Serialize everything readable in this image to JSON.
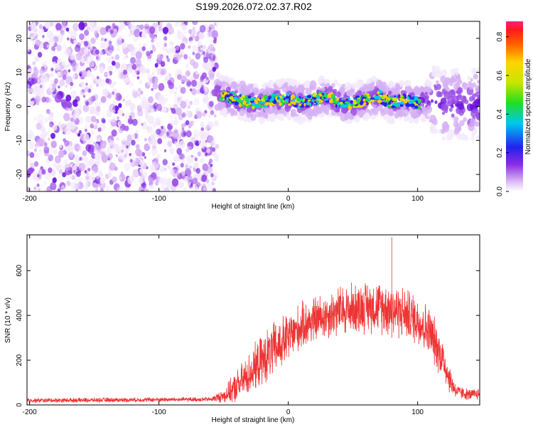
{
  "figure": {
    "title": "S199.2026.072.02.37.R02"
  },
  "chart_data": [
    {
      "type": "heatmap",
      "name": "spectrogram",
      "xlabel": "Height of straight line (km)",
      "ylabel": "Frequency (Hz)",
      "xlim": [
        -202,
        148
      ],
      "ylim": [
        -25,
        25
      ],
      "xticks": [
        -200,
        -100,
        0,
        100
      ],
      "yticks": [
        -20,
        -10,
        0,
        10,
        20
      ],
      "colorbar": {
        "label": "Normalized spectral amplitude",
        "range": [
          0,
          0.88
        ],
        "ticks": [
          0.0,
          0.2,
          0.4,
          0.6,
          0.8
        ]
      },
      "regions": [
        {
          "desc": "broadband noise",
          "x_range": [
            -202,
            -55
          ],
          "f_range": [
            -25,
            25
          ],
          "amplitude": 0.15
        },
        {
          "desc": "signal band",
          "x_range": [
            -55,
            148
          ],
          "amplitude_peak": 0.85
        },
        {
          "desc": "spread at far end",
          "x_range": [
            110,
            148
          ],
          "f_range": [
            -10,
            10
          ],
          "amplitude": 0.3
        }
      ],
      "centroid_track": {
        "x": [
          -55,
          -40,
          -25,
          -10,
          0,
          10,
          20,
          30,
          40,
          50,
          60,
          70,
          80,
          90,
          100,
          110,
          120,
          130,
          140,
          148
        ],
        "freq": [
          4,
          2,
          1,
          2,
          2,
          1,
          2,
          3,
          1,
          1,
          2,
          3,
          1,
          2,
          1,
          2,
          0,
          1,
          0,
          1
        ]
      }
    },
    {
      "type": "line",
      "name": "snr-trace",
      "xlabel": "Height of straight line (km)",
      "ylabel": "SNR (10 * v/v)",
      "xlim": [
        -202,
        148
      ],
      "ylim": [
        0,
        760
      ],
      "xticks": [
        -200,
        -100,
        0,
        100
      ],
      "yticks": [
        0,
        200,
        400,
        600
      ],
      "color": "#ee3333",
      "envelope": {
        "x": [
          -202,
          -60,
          -50,
          -40,
          -30,
          -20,
          -10,
          0,
          10,
          20,
          30,
          40,
          50,
          60,
          70,
          80,
          90,
          100,
          110,
          120,
          125,
          130,
          140,
          148
        ],
        "mean": [
          20,
          25,
          40,
          80,
          140,
          200,
          250,
          300,
          350,
          380,
          400,
          420,
          430,
          440,
          440,
          430,
          410,
          380,
          320,
          200,
          110,
          60,
          45,
          50
        ],
        "spread": [
          10,
          10,
          30,
          70,
          90,
          110,
          120,
          110,
          100,
          100,
          100,
          110,
          110,
          110,
          110,
          120,
          110,
          110,
          110,
          90,
          60,
          30,
          25,
          25
        ]
      },
      "peak": {
        "x": 80,
        "y": 750
      }
    }
  ]
}
